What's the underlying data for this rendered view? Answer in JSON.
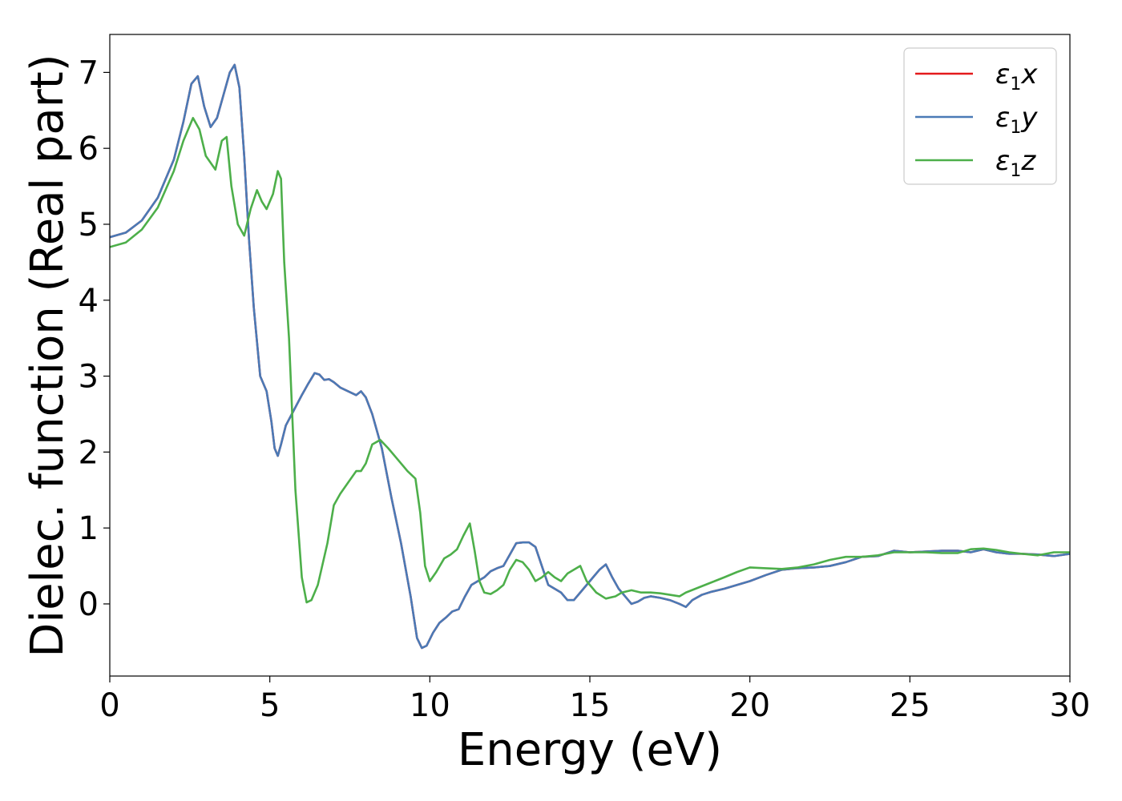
{
  "chart_data": {
    "type": "line",
    "xlabel": "Energy (eV)",
    "ylabel": "Dielec. function (Real part)",
    "xlim": [
      0,
      30
    ],
    "ylim": [
      -0.95,
      7.5
    ],
    "xticks": [
      0,
      5,
      10,
      15,
      20,
      25,
      30
    ],
    "xtick_labels": [
      "0",
      "5",
      "10",
      "15",
      "20",
      "25",
      "30"
    ],
    "yticks": [
      0,
      1,
      2,
      3,
      4,
      5,
      6,
      7
    ],
    "ytick_labels": [
      "0",
      "1",
      "2",
      "3",
      "4",
      "5",
      "6",
      "7"
    ],
    "grid": false,
    "legend_position": "top-right",
    "series": [
      {
        "name": "ε1x",
        "legend_main": "ε",
        "legend_sub": "1",
        "legend_var": "x",
        "color": "#e41a1c",
        "x": [
          0,
          0.5,
          1.0,
          1.5,
          2.0,
          2.3,
          2.55,
          2.75,
          2.95,
          3.15,
          3.35,
          3.55,
          3.75,
          3.9,
          4.05,
          4.2,
          4.35,
          4.5,
          4.7,
          4.9,
          5.05,
          5.15,
          5.25,
          5.35,
          5.5,
          5.75,
          6.0,
          6.2,
          6.4,
          6.55,
          6.7,
          6.85,
          7.0,
          7.2,
          7.45,
          7.7,
          7.85,
          8.0,
          8.2,
          8.5,
          8.8,
          9.1,
          9.4,
          9.6,
          9.75,
          9.9,
          10.1,
          10.3,
          10.5,
          10.7,
          10.9,
          11.1,
          11.3,
          11.5,
          11.7,
          11.9,
          12.1,
          12.3,
          12.5,
          12.7,
          12.9,
          13.1,
          13.3,
          13.5,
          13.7,
          13.9,
          14.1,
          14.3,
          14.5,
          14.7,
          14.9,
          15.1,
          15.3,
          15.5,
          15.7,
          15.9,
          16.1,
          16.3,
          16.5,
          16.7,
          16.9,
          17.2,
          17.5,
          17.8,
          18.0,
          18.2,
          18.5,
          18.8,
          19.2,
          19.6,
          20.0,
          20.5,
          21.0,
          21.5,
          22.0,
          22.5,
          23.0,
          23.5,
          24.0,
          24.5,
          25.0,
          25.5,
          26.0,
          26.5,
          26.9,
          27.3,
          27.7,
          28.1,
          28.5,
          29.0,
          29.5,
          30.0
        ],
        "y": [
          4.83,
          4.89,
          5.05,
          5.35,
          5.85,
          6.35,
          6.85,
          6.95,
          6.55,
          6.28,
          6.4,
          6.7,
          7.0,
          7.1,
          6.8,
          5.9,
          4.8,
          3.9,
          3.0,
          2.8,
          2.4,
          2.05,
          1.95,
          2.1,
          2.35,
          2.55,
          2.75,
          2.9,
          3.04,
          3.02,
          2.95,
          2.96,
          2.92,
          2.85,
          2.8,
          2.75,
          2.8,
          2.72,
          2.5,
          2.05,
          1.4,
          0.8,
          0.1,
          -0.45,
          -0.58,
          -0.55,
          -0.38,
          -0.25,
          -0.18,
          -0.1,
          -0.07,
          0.1,
          0.25,
          0.3,
          0.35,
          0.43,
          0.47,
          0.5,
          0.65,
          0.8,
          0.81,
          0.81,
          0.75,
          0.5,
          0.25,
          0.2,
          0.15,
          0.05,
          0.05,
          0.15,
          0.25,
          0.35,
          0.45,
          0.52,
          0.35,
          0.2,
          0.1,
          0.0,
          0.03,
          0.08,
          0.1,
          0.08,
          0.05,
          0.0,
          -0.04,
          0.05,
          0.12,
          0.16,
          0.2,
          0.25,
          0.3,
          0.38,
          0.45,
          0.47,
          0.48,
          0.5,
          0.55,
          0.62,
          0.63,
          0.7,
          0.68,
          0.69,
          0.7,
          0.7,
          0.68,
          0.72,
          0.68,
          0.66,
          0.66,
          0.65,
          0.63,
          0.66
        ]
      },
      {
        "name": "ε1y",
        "legend_main": "ε",
        "legend_sub": "1",
        "legend_var": "y",
        "color": "#4a7ab6",
        "x": [
          0,
          0.5,
          1.0,
          1.5,
          2.0,
          2.3,
          2.55,
          2.75,
          2.95,
          3.15,
          3.35,
          3.55,
          3.75,
          3.9,
          4.05,
          4.2,
          4.35,
          4.5,
          4.7,
          4.9,
          5.05,
          5.15,
          5.25,
          5.35,
          5.5,
          5.75,
          6.0,
          6.2,
          6.4,
          6.55,
          6.7,
          6.85,
          7.0,
          7.2,
          7.45,
          7.7,
          7.85,
          8.0,
          8.2,
          8.5,
          8.8,
          9.1,
          9.4,
          9.6,
          9.75,
          9.9,
          10.1,
          10.3,
          10.5,
          10.7,
          10.9,
          11.1,
          11.3,
          11.5,
          11.7,
          11.9,
          12.1,
          12.3,
          12.5,
          12.7,
          12.9,
          13.1,
          13.3,
          13.5,
          13.7,
          13.9,
          14.1,
          14.3,
          14.5,
          14.7,
          14.9,
          15.1,
          15.3,
          15.5,
          15.7,
          15.9,
          16.1,
          16.3,
          16.5,
          16.7,
          16.9,
          17.2,
          17.5,
          17.8,
          18.0,
          18.2,
          18.5,
          18.8,
          19.2,
          19.6,
          20.0,
          20.5,
          21.0,
          21.5,
          22.0,
          22.5,
          23.0,
          23.5,
          24.0,
          24.5,
          25.0,
          25.5,
          26.0,
          26.5,
          26.9,
          27.3,
          27.7,
          28.1,
          28.5,
          29.0,
          29.5,
          30.0
        ],
        "y": [
          4.83,
          4.89,
          5.05,
          5.35,
          5.85,
          6.35,
          6.85,
          6.95,
          6.55,
          6.28,
          6.4,
          6.7,
          7.0,
          7.1,
          6.8,
          5.9,
          4.8,
          3.9,
          3.0,
          2.8,
          2.4,
          2.05,
          1.95,
          2.1,
          2.35,
          2.55,
          2.75,
          2.9,
          3.04,
          3.02,
          2.95,
          2.96,
          2.92,
          2.85,
          2.8,
          2.75,
          2.8,
          2.72,
          2.5,
          2.05,
          1.4,
          0.8,
          0.1,
          -0.45,
          -0.58,
          -0.55,
          -0.38,
          -0.25,
          -0.18,
          -0.1,
          -0.07,
          0.1,
          0.25,
          0.3,
          0.35,
          0.43,
          0.47,
          0.5,
          0.65,
          0.8,
          0.81,
          0.81,
          0.75,
          0.5,
          0.25,
          0.2,
          0.15,
          0.05,
          0.05,
          0.15,
          0.25,
          0.35,
          0.45,
          0.52,
          0.35,
          0.2,
          0.1,
          0.0,
          0.03,
          0.08,
          0.1,
          0.08,
          0.05,
          0.0,
          -0.04,
          0.05,
          0.12,
          0.16,
          0.2,
          0.25,
          0.3,
          0.38,
          0.45,
          0.47,
          0.48,
          0.5,
          0.55,
          0.62,
          0.63,
          0.7,
          0.68,
          0.69,
          0.7,
          0.7,
          0.68,
          0.72,
          0.68,
          0.66,
          0.66,
          0.65,
          0.63,
          0.66
        ]
      },
      {
        "name": "ε1z",
        "legend_main": "ε",
        "legend_sub": "1",
        "legend_var": "z",
        "color": "#4daf4a",
        "x": [
          0,
          0.5,
          1.0,
          1.5,
          2.0,
          2.3,
          2.6,
          2.8,
          3.0,
          3.3,
          3.5,
          3.65,
          3.8,
          4.0,
          4.2,
          4.4,
          4.6,
          4.75,
          4.9,
          5.1,
          5.25,
          5.35,
          5.45,
          5.6,
          5.8,
          6.0,
          6.15,
          6.3,
          6.5,
          6.8,
          7.0,
          7.2,
          7.45,
          7.7,
          7.85,
          8.0,
          8.2,
          8.45,
          8.7,
          9.0,
          9.3,
          9.55,
          9.7,
          9.85,
          10.0,
          10.2,
          10.45,
          10.65,
          10.85,
          11.05,
          11.25,
          11.4,
          11.55,
          11.7,
          11.9,
          12.1,
          12.3,
          12.5,
          12.7,
          12.9,
          13.1,
          13.3,
          13.5,
          13.7,
          13.9,
          14.1,
          14.3,
          14.5,
          14.7,
          14.9,
          15.2,
          15.5,
          15.8,
          16.0,
          16.3,
          16.6,
          16.9,
          17.2,
          17.5,
          17.8,
          18.0,
          18.3,
          18.6,
          18.9,
          19.2,
          19.6,
          20.0,
          20.5,
          21.0,
          21.5,
          22.0,
          22.5,
          23.0,
          23.5,
          24.0,
          24.5,
          25.0,
          25.5,
          26.0,
          26.5,
          26.9,
          27.3,
          27.7,
          28.1,
          28.5,
          29.0,
          29.5,
          30.0
        ],
        "y": [
          4.7,
          4.76,
          4.93,
          5.22,
          5.7,
          6.1,
          6.4,
          6.25,
          5.9,
          5.72,
          6.1,
          6.15,
          5.5,
          5.0,
          4.85,
          5.2,
          5.45,
          5.3,
          5.2,
          5.4,
          5.7,
          5.6,
          4.5,
          3.5,
          1.5,
          0.35,
          0.02,
          0.05,
          0.25,
          0.8,
          1.3,
          1.45,
          1.6,
          1.75,
          1.75,
          1.85,
          2.1,
          2.16,
          2.05,
          1.9,
          1.75,
          1.65,
          1.2,
          0.5,
          0.3,
          0.42,
          0.6,
          0.65,
          0.72,
          0.9,
          1.06,
          0.7,
          0.3,
          0.15,
          0.13,
          0.18,
          0.25,
          0.45,
          0.58,
          0.55,
          0.45,
          0.3,
          0.35,
          0.42,
          0.35,
          0.3,
          0.4,
          0.45,
          0.5,
          0.3,
          0.15,
          0.07,
          0.1,
          0.15,
          0.18,
          0.15,
          0.15,
          0.14,
          0.12,
          0.1,
          0.15,
          0.2,
          0.25,
          0.3,
          0.35,
          0.42,
          0.48,
          0.47,
          0.46,
          0.48,
          0.52,
          0.58,
          0.62,
          0.62,
          0.64,
          0.68,
          0.68,
          0.68,
          0.67,
          0.67,
          0.72,
          0.73,
          0.71,
          0.68,
          0.66,
          0.64,
          0.68,
          0.68
        ]
      }
    ]
  }
}
